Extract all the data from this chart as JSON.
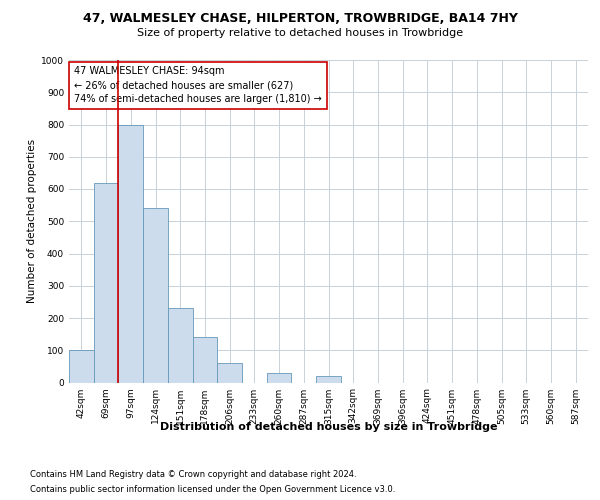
{
  "title_line1": "47, WALMESLEY CHASE, HILPERTON, TROWBRIDGE, BA14 7HY",
  "title_line2": "Size of property relative to detached houses in Trowbridge",
  "xlabel": "Distribution of detached houses by size in Trowbridge",
  "ylabel": "Number of detached properties",
  "categories": [
    "42sqm",
    "69sqm",
    "97sqm",
    "124sqm",
    "151sqm",
    "178sqm",
    "206sqm",
    "233sqm",
    "260sqm",
    "287sqm",
    "315sqm",
    "342sqm",
    "369sqm",
    "396sqm",
    "424sqm",
    "451sqm",
    "478sqm",
    "505sqm",
    "533sqm",
    "560sqm",
    "587sqm"
  ],
  "values": [
    100,
    620,
    800,
    540,
    230,
    140,
    60,
    0,
    30,
    0,
    20,
    0,
    0,
    0,
    0,
    0,
    0,
    0,
    0,
    0,
    0
  ],
  "bar_color": "#ccdcec",
  "bar_edge_color": "#6699bb",
  "property_line_color": "#cc0000",
  "annotation_text": "47 WALMESLEY CHASE: 94sqm\n← 26% of detached houses are smaller (627)\n74% of semi-detached houses are larger (1,810) →",
  "annotation_box_color": "#ffffff",
  "annotation_box_edge_color": "#cc0000",
  "ylim": [
    0,
    1000
  ],
  "yticks": [
    0,
    100,
    200,
    300,
    400,
    500,
    600,
    700,
    800,
    900,
    1000
  ],
  "footer_line1": "Contains HM Land Registry data © Crown copyright and database right 2024.",
  "footer_line2": "Contains public sector information licensed under the Open Government Licence v3.0.",
  "background_color": "#ffffff",
  "grid_color": "#c8d0d8",
  "title_fontsize": 9,
  "subtitle_fontsize": 8,
  "ylabel_fontsize": 7.5,
  "xlabel_fontsize": 8,
  "tick_fontsize": 6.5,
  "footer_fontsize": 6,
  "annotation_fontsize": 7
}
